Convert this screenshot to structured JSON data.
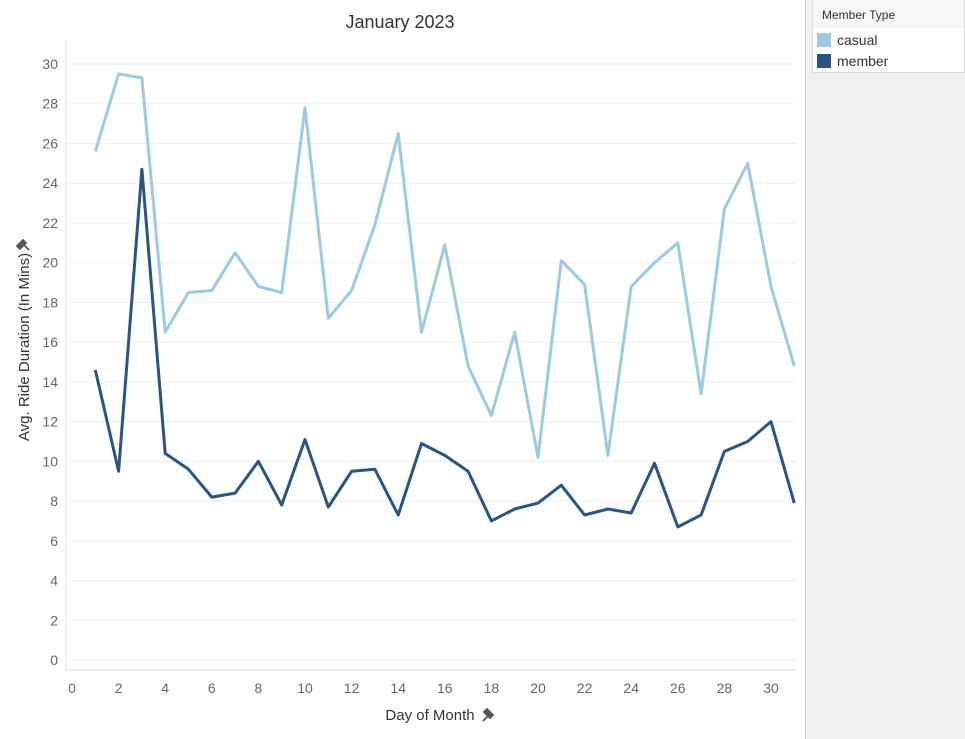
{
  "legend": {
    "title": "Member Type",
    "items": [
      {
        "label": "casual",
        "color": "#9ecae1"
      },
      {
        "label": "member",
        "color": "#2b5480"
      }
    ]
  },
  "icons": {
    "pin": "pin-icon"
  },
  "chart_data": {
    "type": "line",
    "title": "January 2023",
    "xlabel": "Day of Month",
    "ylabel": "Avg. Ride Duration (In Mins)",
    "xlim": [
      0,
      31
    ],
    "ylim": [
      0,
      31
    ],
    "xticks": [
      0,
      2,
      4,
      6,
      8,
      10,
      12,
      14,
      16,
      18,
      20,
      22,
      24,
      26,
      28,
      30
    ],
    "yticks": [
      0,
      2,
      4,
      6,
      8,
      10,
      12,
      14,
      16,
      18,
      20,
      22,
      24,
      26,
      28,
      30
    ],
    "grid": "horizontal",
    "legend_position": "right",
    "x": [
      1,
      2,
      3,
      4,
      5,
      6,
      7,
      8,
      9,
      10,
      11,
      12,
      13,
      14,
      15,
      16,
      17,
      18,
      19,
      20,
      21,
      22,
      23,
      24,
      25,
      26,
      27,
      28,
      29,
      30,
      31
    ],
    "series": [
      {
        "name": "casual",
        "color": "#9ecae1",
        "values": [
          25.6,
          29.5,
          29.3,
          16.5,
          18.5,
          18.6,
          20.5,
          18.8,
          18.5,
          27.8,
          17.2,
          18.6,
          21.9,
          26.5,
          16.5,
          20.9,
          14.8,
          12.3,
          16.5,
          10.2,
          20.1,
          18.9,
          10.3,
          18.8,
          20.0,
          21.0,
          13.4,
          22.7,
          25.0,
          18.8,
          14.8
        ]
      },
      {
        "name": "member",
        "color": "#2b5480",
        "values": [
          14.6,
          9.5,
          24.7,
          10.4,
          9.6,
          8.2,
          8.4,
          10.0,
          7.8,
          11.1,
          7.7,
          9.5,
          9.6,
          7.3,
          10.9,
          10.3,
          9.5,
          7.0,
          7.6,
          7.9,
          8.8,
          7.3,
          7.6,
          7.4,
          9.9,
          6.7,
          7.3,
          10.5,
          11.0,
          12.0,
          7.9
        ]
      }
    ]
  }
}
